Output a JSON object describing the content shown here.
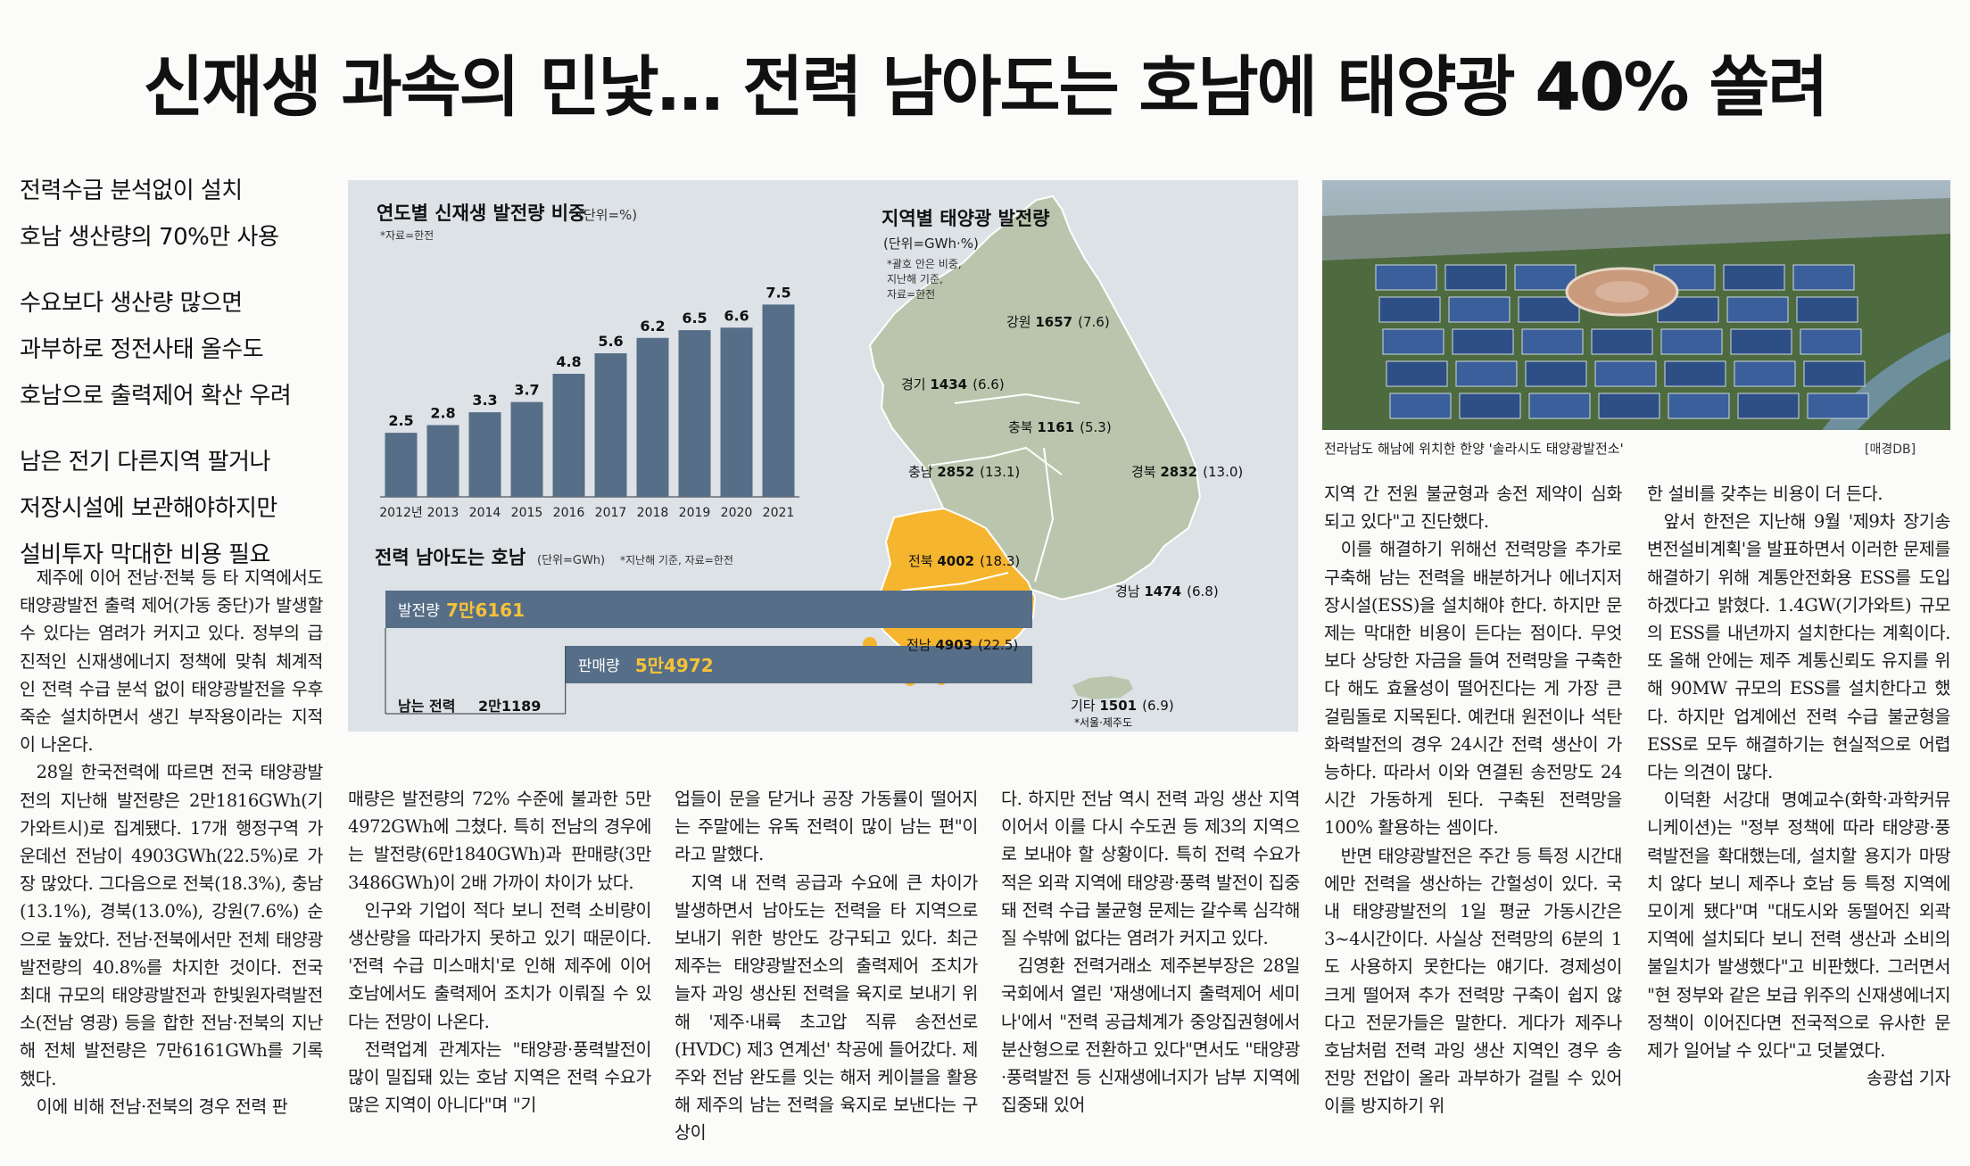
{
  "headline": "신재생 과속의 민낯… 전력 남아도는 호남에 태양광 40% 쏠려",
  "subheads": [
    [
      "전력수급 분석없이 설치",
      "호남 생산량의 70%만 사용"
    ],
    [
      "수요보다 생산량 많으면",
      "과부하로 정전사태 올수도",
      "호남으로 출력제어 확산 우려"
    ],
    [
      "남은 전기 다른지역 팔거나",
      "저장시설에 보관해야하지만",
      "설비투자 막대한 비용 필요"
    ]
  ],
  "chart_data": [
    {
      "type": "bar",
      "title": "연도별 신재생 발전량 비중",
      "unit": "(단위=%)",
      "source": "*자료=한전",
      "categories": [
        "2012년",
        "2013",
        "2014",
        "2015",
        "2016",
        "2017",
        "2018",
        "2019",
        "2020",
        "2021"
      ],
      "values": [
        2.5,
        2.8,
        3.3,
        3.7,
        4.8,
        5.6,
        6.2,
        6.5,
        6.6,
        7.5
      ],
      "value_labels": [
        "2.5",
        "2.8",
        "3.3",
        "3.7",
        "4.8",
        "5.6",
        "6.2",
        "6.5",
        "6.6",
        "7.5"
      ],
      "ylim": [
        0,
        8
      ],
      "bar_color": "#566e87"
    },
    {
      "type": "bar",
      "title": "전력 남아도는 호남",
      "unit": "(단위=GWh)",
      "note": "*지난해 기준, 자료=한전",
      "orientation": "horizontal",
      "bars": [
        {
          "name": "발전량",
          "value": 76161,
          "label": "7만6161",
          "offset": 0
        },
        {
          "name": "판매량",
          "value": 54972,
          "label": "5만4972",
          "offset": 21189
        }
      ],
      "remainder": {
        "name": "남는 전력",
        "value": 21189,
        "label": "2만1189"
      },
      "bar_color": "#566e87",
      "value_color": "#f5c23a"
    }
  ],
  "map": {
    "title": "지역별 태양광 발전량",
    "unit": "(단위=GWh·%)",
    "notes": [
      "*괄호 안은 비중,",
      "지난해 기준,",
      "자료=한전"
    ],
    "regions": [
      {
        "name": "강원",
        "value": "1657",
        "share": "(7.6)",
        "highlight": false
      },
      {
        "name": "경기",
        "value": "1434",
        "share": "(6.6)",
        "highlight": false
      },
      {
        "name": "충북",
        "value": "1161",
        "share": "(5.3)",
        "highlight": false
      },
      {
        "name": "충남",
        "value": "2852",
        "share": "(13.1)",
        "highlight": false
      },
      {
        "name": "경북",
        "value": "2832",
        "share": "(13.0)",
        "highlight": false
      },
      {
        "name": "전북",
        "value": "4002",
        "share": "(18.3)",
        "highlight": true
      },
      {
        "name": "경남",
        "value": "1474",
        "share": "(6.8)",
        "highlight": false
      },
      {
        "name": "전남",
        "value": "4903",
        "share": "(22.5)",
        "highlight": true
      },
      {
        "name": "기타",
        "value": "1501",
        "share": "(6.9)",
        "highlight": false
      }
    ],
    "other_note": "*서울·제주도",
    "land_color": "#b9c6ad",
    "honam_color": "#f5b52e"
  },
  "photo": {
    "caption": "전라남도 해남에 위치한 한양 '솔라시도 태양광발전소'",
    "credit": "[매경DB]"
  },
  "columns": [
    [
      {
        "text": "제주에 이어 전남·전북 등 타 지역에서도 태양광발전 출력 제어(가동 중단)가 발생할 수 있다는 염려가 커지고 있다. 정부의 급진적인 신재생에너지 정책에 맞춰 체계적인 전력 수급 분석 없이 태양광발전을 우후죽순 설치하면서 생긴 부작용이라는 지적이 나온다.",
        "cont": false
      },
      {
        "text": "28일 한국전력에 따르면 전국 태양광발전의 지난해 발전량은 2만1816GWh(기가와트시)로 집계됐다. 17개 행정구역 가운데선 전남이 4903GWh(22.5%)로 가장 많았다. 그다음으로 전북(18.3%), 충남(13.1%), 경북(13.0%), 강원(7.6%) 순으로 높았다. 전남·전북에서만 전체 태양광 발전량의 40.8%를 차지한 것이다. 전국 최대 규모의 태양광발전과 한빛원자력발전소(전남 영광) 등을 합한 전남·전북의 지난해 전체 발전량은 7만6161GWh를 기록했다.",
        "cont": false
      },
      {
        "text": "이에 비해 전남·전북의 경우 전력 판",
        "cont": false
      }
    ],
    [
      {
        "text": "매량은 발전량의 72% 수준에 불과한 5만4972GWh에 그쳤다. 특히 전남의 경우에는 발전량(6만1840GWh)과 판매량(3만3486GWh)이 2배 가까이 차이가 났다.",
        "cont": true
      },
      {
        "text": "인구와 기업이 적다 보니 전력 소비량이 생산량을 따라가지 못하고 있기 때문이다. '전력 수급 미스매치'로 인해 제주에 이어 호남에서도 출력제어 조치가 이뤄질 수 있다는 전망이 나온다.",
        "cont": false
      },
      {
        "text": "전력업계 관계자는 \"태양광·풍력발전이 많이 밀집돼 있는 호남 지역은 전력 수요가 많은 지역이 아니다\"며 \"기",
        "cont": false
      }
    ],
    [
      {
        "text": "업들이 문을 닫거나 공장 가동률이 떨어지는 주말에는 유독 전력이 많이 남는 편\"이라고 말했다.",
        "cont": true
      },
      {
        "text": "지역 내 전력 공급과 수요에 큰 차이가 발생하면서 남아도는 전력을 타 지역으로 보내기 위한 방안도 강구되고 있다. 최근 제주는 태양광발전소의 출력제어 조치가 늘자 과잉 생산된 전력을 육지로 보내기 위해 '제주·내륙 초고압 직류 송전선로(HVDC) 제3 연계선' 착공에 들어갔다. 제주와 전남 완도를 잇는 해저 케이블을 활용해 제주의 남는 전력을 육지로 보낸다는 구상이",
        "cont": false
      }
    ],
    [
      {
        "text": "다. 하지만 전남 역시 전력 과잉 생산 지역이어서 이를 다시 수도권 등 제3의 지역으로 보내야 할 상황이다. 특히 전력 수요가 적은 외곽 지역에 태양광·풍력 발전이 집중돼 전력 수급 불균형 문제는 갈수록 심각해질 수밖에 없다는 염려가 커지고 있다.",
        "cont": true
      },
      {
        "text": "김영환 전력거래소 제주본부장은 28일 국회에서 열린 '재생에너지 출력제어 세미나'에서 \"전력 공급체계가 중앙집권형에서 분산형으로 전환하고 있다\"면서도 \"태양광·풍력발전 등 신재생에너지가 남부 지역에 집중돼 있어",
        "cont": false
      }
    ],
    [
      {
        "text": "지역 간 전원 불균형과 송전 제약이 심화되고 있다\"고 진단했다.",
        "cont": true
      },
      {
        "text": "이를 해결하기 위해선 전력망을 추가로 구축해 남는 전력을 배분하거나 에너지저장시설(ESS)을 설치해야 한다. 하지만 문제는 막대한 비용이 든다는 점이다. 무엇보다 상당한 자금을 들여 전력망을 구축한다 해도 효율성이 떨어진다는 게 가장 큰 걸림돌로 지목된다. 예컨대 원전이나 석탄화력발전의 경우 24시간 전력 생산이 가능하다. 따라서 이와 연결된 송전망도 24시간 가동하게 된다. 구축된 전력망을 100% 활용하는 셈이다.",
        "cont": false
      },
      {
        "text": "반면 태양광발전은 주간 등 특정 시간대에만 전력을 생산하는 간헐성이 있다. 국내 태양광발전의 1일 평균 가동시간은 3~4시간이다. 사실상 전력망의 6분의 1도 사용하지 못한다는 얘기다. 경제성이 크게 떨어져 추가 전력망 구축이 쉽지 않다고 전문가들은 말한다. 게다가 제주나 호남처럼 전력 과잉 생산 지역인 경우 송전망 전압이 올라 과부하가 걸릴 수 있어 이를 방지하기 위",
        "cont": false
      }
    ],
    [
      {
        "text": "한 설비를 갖추는 비용이 더 든다.",
        "cont": true
      },
      {
        "text": "앞서 한전은 지난해 9월 '제9차 장기송변전설비계획'을 발표하면서 이러한 문제를 해결하기 위해 계통안전화용 ESS를 도입하겠다고 밝혔다. 1.4GW(기가와트) 규모의 ESS를 내년까지 설치한다는 계획이다. 또 올해 안에는 제주 계통신뢰도 유지를 위해 90MW 규모의 ESS를 설치한다고 했다. 하지만 업계에선 전력 수급 불균형을 ESS로 모두 해결하기는 현실적으로 어렵다는 의견이 많다.",
        "cont": false
      },
      {
        "text": "이덕환 서강대 명예교수(화학·과학커뮤니케이션)는 \"정부 정책에 따라 태양광·풍력발전을 확대했는데, 설치할 용지가 마땅치 않다 보니 제주나 호남 등 특정 지역에 모이게 됐다\"며 \"대도시와 동떨어진 외곽 지역에 설치되다 보니 전력 생산과 소비의 불일치가 발생했다\"고 비판했다. 그러면서 \"현 정부와 같은 보급 위주의 신재생에너지 정책이 이어진다면 전국적으로 유사한 문제가 일어날 수 있다\"고 덧붙였다.",
        "cont": false
      }
    ]
  ],
  "byline": "송광섭 기자"
}
